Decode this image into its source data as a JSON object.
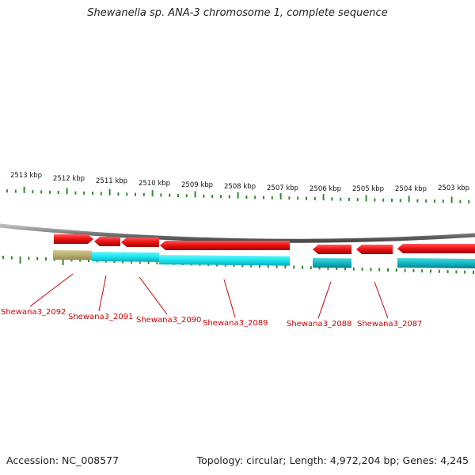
{
  "title": "Shewanella sp. ANA-3 chromosome 1, complete sequence",
  "accession": "Accession: NC_008577",
  "summary": "Topology: circular; Length: 4,972,204 bp; Genes: 4,245",
  "scale_labels": [
    "2513 kbp",
    "2512 kbp",
    "2511 kbp",
    "2510 kbp",
    "2509 kbp",
    "2508 kbp",
    "2507 kbp",
    "2506 kbp",
    "2505 kbp",
    "2504 kbp",
    "2503 kbp"
  ],
  "genes": [
    {
      "label": "Shewana3_2092"
    },
    {
      "label": "Shewana3_2091"
    },
    {
      "label": "Shewana3_2090"
    },
    {
      "label": "Shewana3_2089"
    },
    {
      "label": "Shewana3_2088"
    },
    {
      "label": "Shewana3_2087"
    }
  ],
  "colors": {
    "backbone": "#7a7a7a",
    "gene_arrow": "#e61010",
    "feature_cyan": "#18e4ee",
    "feature_teal": "#0fb9c4",
    "feature_khaki": "#b8ae6e",
    "tick": "#2f8a2f",
    "label": "#cc0000",
    "leader": "#cc0000"
  }
}
